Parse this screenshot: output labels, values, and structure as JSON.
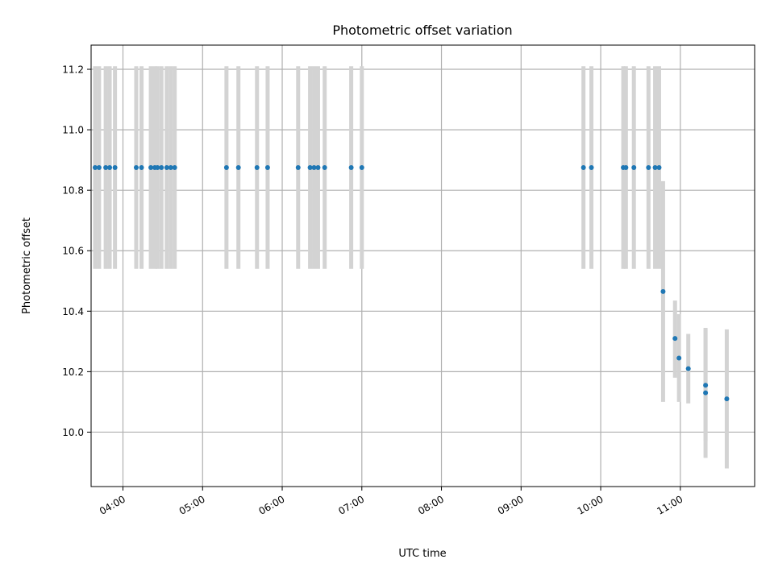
{
  "chart_data": {
    "type": "scatter",
    "title": "Photometric offset variation",
    "xlabel": "UTC time",
    "ylabel": "Photometric offset",
    "x_tick_labels": [
      "04:00",
      "05:00",
      "06:00",
      "07:00",
      "08:00",
      "09:00",
      "10:00",
      "11:00"
    ],
    "y_tick_labels": [
      "10.0",
      "10.2",
      "10.4",
      "10.6",
      "10.8",
      "11.0",
      "11.2"
    ],
    "x_ticks": [
      "04:00",
      "05:00",
      "06:00",
      "07:00",
      "08:00",
      "09:00",
      "10:00",
      "11:00"
    ],
    "y_ticks": [
      10.0,
      10.2,
      10.4,
      10.6,
      10.8,
      11.0,
      11.2
    ],
    "xlim": [
      "03:36",
      "11:56"
    ],
    "ylim": [
      9.82,
      11.28
    ],
    "grid": true,
    "point_color": "#1f77b4",
    "errorbar_color": "#d3d3d3",
    "points": [
      {
        "x": "03:39",
        "y": 10.875,
        "lo": 10.54,
        "hi": 11.21
      },
      {
        "x": "03:42",
        "y": 10.875,
        "lo": 10.54,
        "hi": 11.21
      },
      {
        "x": "03:47",
        "y": 10.875,
        "lo": 10.54,
        "hi": 11.21
      },
      {
        "x": "03:50",
        "y": 10.875,
        "lo": 10.54,
        "hi": 11.21
      },
      {
        "x": "03:54",
        "y": 10.875,
        "lo": 10.54,
        "hi": 11.21
      },
      {
        "x": "04:10",
        "y": 10.875,
        "lo": 10.54,
        "hi": 11.21
      },
      {
        "x": "04:14",
        "y": 10.875,
        "lo": 10.54,
        "hi": 11.21
      },
      {
        "x": "04:21",
        "y": 10.875,
        "lo": 10.54,
        "hi": 11.21
      },
      {
        "x": "04:24",
        "y": 10.875,
        "lo": 10.54,
        "hi": 11.21
      },
      {
        "x": "04:26",
        "y": 10.875,
        "lo": 10.54,
        "hi": 11.21
      },
      {
        "x": "04:29",
        "y": 10.875,
        "lo": 10.54,
        "hi": 11.21
      },
      {
        "x": "04:33",
        "y": 10.875,
        "lo": 10.54,
        "hi": 11.21
      },
      {
        "x": "04:36",
        "y": 10.875,
        "lo": 10.54,
        "hi": 11.21
      },
      {
        "x": "04:39",
        "y": 10.875,
        "lo": 10.54,
        "hi": 11.21
      },
      {
        "x": "05:18",
        "y": 10.875,
        "lo": 10.54,
        "hi": 11.21
      },
      {
        "x": "05:27",
        "y": 10.875,
        "lo": 10.54,
        "hi": 11.21
      },
      {
        "x": "05:41",
        "y": 10.875,
        "lo": 10.54,
        "hi": 11.21
      },
      {
        "x": "05:49",
        "y": 10.875,
        "lo": 10.54,
        "hi": 11.21
      },
      {
        "x": "06:12",
        "y": 10.875,
        "lo": 10.54,
        "hi": 11.21
      },
      {
        "x": "06:21",
        "y": 10.875,
        "lo": 10.54,
        "hi": 11.21
      },
      {
        "x": "06:24",
        "y": 10.875,
        "lo": 10.54,
        "hi": 11.21
      },
      {
        "x": "06:27",
        "y": 10.875,
        "lo": 10.54,
        "hi": 11.21
      },
      {
        "x": "06:32",
        "y": 10.875,
        "lo": 10.54,
        "hi": 11.21
      },
      {
        "x": "06:52",
        "y": 10.875,
        "lo": 10.54,
        "hi": 11.21
      },
      {
        "x": "07:00",
        "y": 10.875,
        "lo": 10.54,
        "hi": 11.21
      },
      {
        "x": "09:47",
        "y": 10.875,
        "lo": 10.54,
        "hi": 11.21
      },
      {
        "x": "09:53",
        "y": 10.875,
        "lo": 10.54,
        "hi": 11.21
      },
      {
        "x": "10:17",
        "y": 10.875,
        "lo": 10.54,
        "hi": 11.21
      },
      {
        "x": "10:19",
        "y": 10.875,
        "lo": 10.54,
        "hi": 11.21
      },
      {
        "x": "10:25",
        "y": 10.875,
        "lo": 10.54,
        "hi": 11.21
      },
      {
        "x": "10:36",
        "y": 10.875,
        "lo": 10.54,
        "hi": 11.21
      },
      {
        "x": "10:41",
        "y": 10.875,
        "lo": 10.54,
        "hi": 11.21
      },
      {
        "x": "10:44",
        "y": 10.875,
        "lo": 10.54,
        "hi": 11.21
      },
      {
        "x": "10:47",
        "y": 10.465,
        "lo": 10.1,
        "hi": 10.83
      },
      {
        "x": "10:56",
        "y": 10.31,
        "lo": 10.18,
        "hi": 10.435
      },
      {
        "x": "10:59",
        "y": 10.245,
        "lo": 10.1,
        "hi": 10.39
      },
      {
        "x": "11:06",
        "y": 10.21,
        "lo": 10.095,
        "hi": 10.325
      },
      {
        "x": "11:19",
        "y": 10.155,
        "lo": 9.97,
        "hi": 10.34
      },
      {
        "x": "11:19",
        "y": 10.13,
        "lo": 9.915,
        "hi": 10.345
      },
      {
        "x": "11:35",
        "y": 10.11,
        "lo": 9.88,
        "hi": 10.34
      }
    ]
  }
}
